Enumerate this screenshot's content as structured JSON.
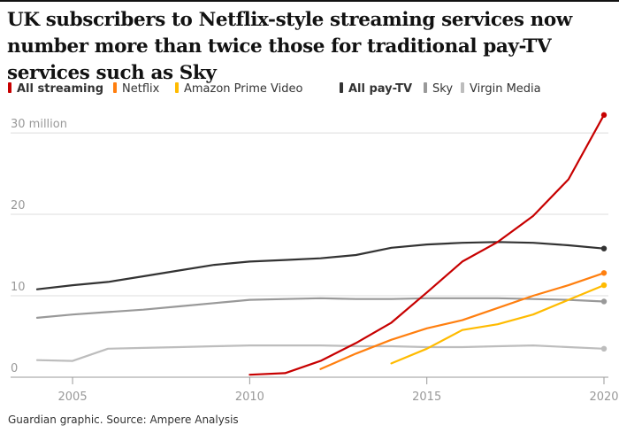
{
  "title": "UK subscribers to Netflix-style streaming services now number more than twice those for traditional pay-TV services such as Sky",
  "source": "Guardian graphic. Source: Ampere Analysis",
  "chart_data": {
    "type": "line",
    "title": "UK subscribers to Netflix-style streaming services now number more than twice those for traditional pay-TV services such as Sky",
    "xlabel": "",
    "ylabel": "",
    "xlim": [
      2004,
      2020
    ],
    "ylim": [
      0,
      30
    ],
    "grid": true,
    "x_ticks": [
      2005,
      2010,
      2015,
      2020
    ],
    "x_tick_labels": [
      "2005",
      "2010",
      "2015",
      "2020"
    ],
    "y_ticks": [
      0,
      10,
      20,
      30
    ],
    "y_tick_labels": [
      "0",
      "10",
      "20",
      "30 million"
    ],
    "legend": "top",
    "series": [
      {
        "name": "All streaming",
        "color": "#c70000",
        "bold": true,
        "x": [
          2010,
          2011,
          2012,
          2013,
          2014,
          2015,
          2016,
          2017,
          2018,
          2019,
          2020
        ],
        "y": [
          0.3,
          0.5,
          2.0,
          4.2,
          6.7,
          10.4,
          14.2,
          16.6,
          19.8,
          24.3,
          32.2
        ]
      },
      {
        "name": "Netflix",
        "color": "#ff7f0f",
        "bold": false,
        "x": [
          2012,
          2013,
          2014,
          2015,
          2016,
          2017,
          2018,
          2019,
          2020
        ],
        "y": [
          1.0,
          2.9,
          4.6,
          6.0,
          7.0,
          8.5,
          10.0,
          11.3,
          12.8
        ]
      },
      {
        "name": "Amazon Prime Video",
        "color": "#ffbb00",
        "bold": false,
        "x": [
          2014,
          2015,
          2016,
          2017,
          2018,
          2019,
          2020
        ],
        "y": [
          1.7,
          3.5,
          5.8,
          6.5,
          7.7,
          9.5,
          11.3
        ]
      },
      {
        "name": "All pay-TV",
        "color": "#333333",
        "bold": true,
        "x": [
          2004,
          2005,
          2006,
          2007,
          2008,
          2009,
          2010,
          2011,
          2012,
          2013,
          2014,
          2015,
          2016,
          2017,
          2018,
          2019,
          2020
        ],
        "y": [
          10.8,
          11.3,
          11.7,
          12.4,
          13.1,
          13.8,
          14.2,
          14.4,
          14.6,
          15.0,
          15.9,
          16.3,
          16.5,
          16.6,
          16.5,
          16.2,
          15.8
        ]
      },
      {
        "name": "Sky",
        "color": "#999999",
        "bold": false,
        "x": [
          2004,
          2005,
          2006,
          2007,
          2008,
          2009,
          2010,
          2011,
          2012,
          2013,
          2014,
          2015,
          2016,
          2017,
          2018,
          2019,
          2020
        ],
        "y": [
          7.3,
          7.7,
          8.0,
          8.3,
          8.7,
          9.1,
          9.5,
          9.6,
          9.7,
          9.6,
          9.6,
          9.7,
          9.7,
          9.7,
          9.6,
          9.5,
          9.3
        ]
      },
      {
        "name": "Virgin Media",
        "color": "#bdbdbd",
        "bold": false,
        "x": [
          2004,
          2005,
          2006,
          2007,
          2008,
          2009,
          2010,
          2011,
          2012,
          2013,
          2014,
          2015,
          2016,
          2017,
          2018,
          2019,
          2020
        ],
        "y": [
          2.1,
          2.0,
          3.5,
          3.6,
          3.7,
          3.8,
          3.9,
          3.9,
          3.9,
          3.8,
          3.8,
          3.7,
          3.7,
          3.8,
          3.9,
          3.7,
          3.5
        ]
      }
    ]
  }
}
